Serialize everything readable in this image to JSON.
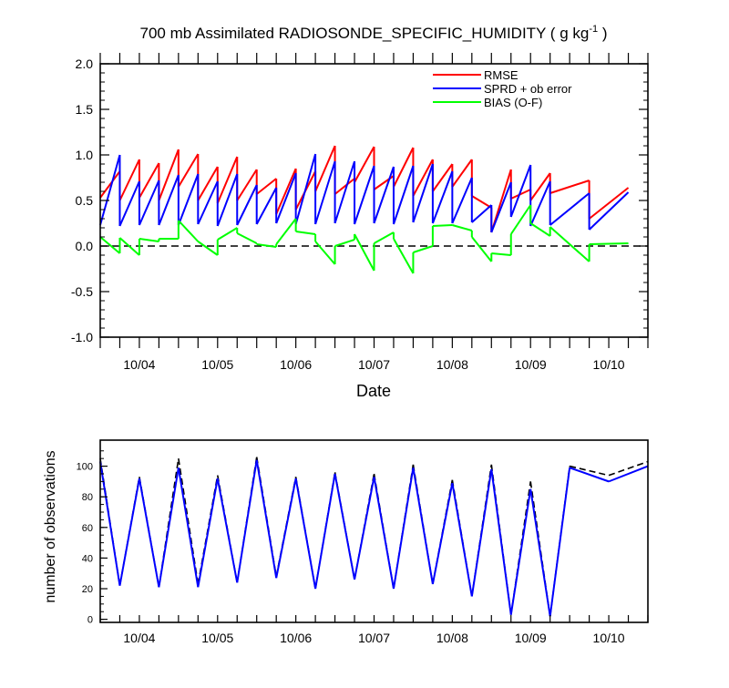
{
  "chart_data": [
    {
      "type": "line",
      "title": "700 mb Assimilated RADIOSONDE_SPECIFIC_HUMIDITY ( g kg",
      "title_superscript": "-1",
      "title_suffix": " )",
      "xlabel": "Date",
      "ylabel": "",
      "x_ticks": [
        "10/04",
        "10/05",
        "10/06",
        "10/07",
        "10/08",
        "10/09",
        "10/10"
      ],
      "x_ticks_at": [
        4,
        5,
        6,
        7,
        8,
        9,
        10
      ],
      "xlim": [
        3.5,
        10.5
      ],
      "ylim": [
        -1.0,
        2.0
      ],
      "y_ticks": [
        "-1.0",
        "-0.5",
        "0.0",
        "0.5",
        "1.0",
        "1.5",
        "2.0"
      ],
      "y_ticks_at": [
        -1.0,
        -0.5,
        0.0,
        0.5,
        1.0,
        1.5,
        2.0
      ],
      "reference_line": {
        "y": 0.0,
        "style": "dashed",
        "color": "#000000"
      },
      "legend": {
        "placement": "top-right"
      },
      "series": [
        {
          "name": "RMSE",
          "color": "#ff0000",
          "segments": [
            [
              [
                3.5,
                0.53
              ],
              [
                3.75,
                0.82
              ]
            ],
            [
              [
                3.75,
                0.5
              ],
              [
                4.0,
                0.95
              ]
            ],
            [
              [
                4.0,
                0.53
              ],
              [
                4.25,
                0.91
              ]
            ],
            [
              [
                4.25,
                0.5
              ],
              [
                4.5,
                1.06
              ]
            ],
            [
              [
                4.5,
                0.65
              ],
              [
                4.75,
                1.01
              ]
            ],
            [
              [
                4.75,
                0.5
              ],
              [
                5.0,
                0.87
              ]
            ],
            [
              [
                5.0,
                0.47
              ],
              [
                5.25,
                0.98
              ]
            ],
            [
              [
                5.25,
                0.5
              ],
              [
                5.5,
                0.84
              ]
            ],
            [
              [
                5.5,
                0.57
              ],
              [
                5.75,
                0.74
              ]
            ],
            [
              [
                5.75,
                0.35
              ],
              [
                6.0,
                0.85
              ]
            ],
            [
              [
                6.0,
                0.4
              ],
              [
                6.25,
                0.82
              ]
            ],
            [
              [
                6.25,
                0.6
              ],
              [
                6.5,
                1.1
              ]
            ],
            [
              [
                6.5,
                0.57
              ],
              [
                6.75,
                0.74
              ]
            ],
            [
              [
                6.75,
                0.7
              ],
              [
                7.0,
                1.09
              ]
            ],
            [
              [
                7.0,
                0.62
              ],
              [
                7.25,
                0.77
              ]
            ],
            [
              [
                7.25,
                0.65
              ],
              [
                7.5,
                1.08
              ]
            ],
            [
              [
                7.5,
                0.55
              ],
              [
                7.75,
                0.95
              ]
            ],
            [
              [
                7.75,
                0.6
              ],
              [
                8.0,
                0.9
              ]
            ],
            [
              [
                8.0,
                0.65
              ],
              [
                8.25,
                0.95
              ]
            ],
            [
              [
                8.25,
                0.55
              ],
              [
                8.5,
                0.42
              ]
            ],
            [
              [
                8.5,
                0.15
              ],
              [
                8.75,
                0.84
              ]
            ],
            [
              [
                8.75,
                0.52
              ],
              [
                9.0,
                0.62
              ]
            ],
            [
              [
                9.0,
                0.5
              ],
              [
                9.25,
                0.8
              ]
            ],
            [
              [
                9.25,
                0.58
              ],
              [
                9.75,
                0.72
              ]
            ],
            [
              [
                9.75,
                0.3
              ],
              [
                10.25,
                0.64
              ]
            ]
          ]
        },
        {
          "name": "SPRD + ob error",
          "color": "#0000ff",
          "segments": [
            [
              [
                3.5,
                0.23
              ],
              [
                3.75,
                1.0
              ]
            ],
            [
              [
                3.75,
                0.22
              ],
              [
                4.0,
                0.71
              ]
            ],
            [
              [
                4.0,
                0.23
              ],
              [
                4.25,
                0.72
              ]
            ],
            [
              [
                4.25,
                0.23
              ],
              [
                4.5,
                0.78
              ]
            ],
            [
              [
                4.5,
                0.23
              ],
              [
                4.75,
                0.79
              ]
            ],
            [
              [
                4.75,
                0.24
              ],
              [
                5.0,
                0.71
              ]
            ],
            [
              [
                5.0,
                0.22
              ],
              [
                5.25,
                0.79
              ]
            ],
            [
              [
                5.25,
                0.23
              ],
              [
                5.5,
                0.67
              ]
            ],
            [
              [
                5.5,
                0.24
              ],
              [
                5.75,
                0.64
              ]
            ],
            [
              [
                5.75,
                0.25
              ],
              [
                6.0,
                0.8
              ]
            ],
            [
              [
                6.0,
                0.24
              ],
              [
                6.25,
                1.01
              ]
            ],
            [
              [
                6.25,
                0.24
              ],
              [
                6.5,
                0.93
              ]
            ],
            [
              [
                6.5,
                0.25
              ],
              [
                6.75,
                0.93
              ]
            ],
            [
              [
                6.75,
                0.24
              ],
              [
                7.0,
                0.88
              ]
            ],
            [
              [
                7.0,
                0.25
              ],
              [
                7.25,
                0.87
              ]
            ],
            [
              [
                7.25,
                0.24
              ],
              [
                7.5,
                0.88
              ]
            ],
            [
              [
                7.5,
                0.26
              ],
              [
                7.75,
                0.9
              ]
            ],
            [
              [
                7.75,
                0.25
              ],
              [
                8.0,
                0.82
              ]
            ],
            [
              [
                8.0,
                0.25
              ],
              [
                8.25,
                0.75
              ]
            ],
            [
              [
                8.25,
                0.26
              ],
              [
                8.5,
                0.45
              ]
            ],
            [
              [
                8.5,
                0.15
              ],
              [
                8.75,
                0.7
              ]
            ],
            [
              [
                8.75,
                0.32
              ],
              [
                9.0,
                0.89
              ]
            ],
            [
              [
                9.0,
                0.22
              ],
              [
                9.25,
                0.71
              ]
            ],
            [
              [
                9.25,
                0.23
              ],
              [
                9.75,
                0.58
              ]
            ],
            [
              [
                9.75,
                0.18
              ],
              [
                10.25,
                0.59
              ]
            ]
          ]
        },
        {
          "name": "BIAS (O-F)",
          "color": "#00ff00",
          "segments": [
            [
              [
                3.5,
                0.1
              ],
              [
                3.75,
                -0.08
              ]
            ],
            [
              [
                3.75,
                0.09
              ],
              [
                4.0,
                -0.1
              ]
            ],
            [
              [
                4.0,
                0.08
              ],
              [
                4.25,
                0.05
              ]
            ],
            [
              [
                4.25,
                0.08
              ],
              [
                4.5,
                0.08
              ]
            ],
            [
              [
                4.5,
                0.28
              ],
              [
                4.75,
                0.05
              ]
            ],
            [
              [
                4.75,
                0.05
              ],
              [
                5.0,
                -0.1
              ]
            ],
            [
              [
                5.0,
                0.07
              ],
              [
                5.25,
                0.2
              ]
            ],
            [
              [
                5.25,
                0.14
              ],
              [
                5.5,
                0.03
              ]
            ],
            [
              [
                5.5,
                0.02
              ],
              [
                5.75,
                -0.01
              ]
            ],
            [
              [
                5.75,
                0.02
              ],
              [
                6.0,
                0.3
              ]
            ],
            [
              [
                6.0,
                0.16
              ],
              [
                6.25,
                0.13
              ]
            ],
            [
              [
                6.25,
                0.05
              ],
              [
                6.5,
                -0.2
              ]
            ],
            [
              [
                6.5,
                0.0
              ],
              [
                6.75,
                0.07
              ]
            ],
            [
              [
                6.75,
                0.13
              ],
              [
                7.0,
                -0.27
              ]
            ],
            [
              [
                7.0,
                0.03
              ],
              [
                7.25,
                0.15
              ]
            ],
            [
              [
                7.25,
                0.08
              ],
              [
                7.5,
                -0.3
              ]
            ],
            [
              [
                7.5,
                -0.07
              ],
              [
                7.75,
                0.0
              ]
            ],
            [
              [
                7.75,
                0.22
              ],
              [
                8.0,
                0.23
              ]
            ],
            [
              [
                8.0,
                0.23
              ],
              [
                8.25,
                0.17
              ]
            ],
            [
              [
                8.25,
                0.1
              ],
              [
                8.5,
                -0.17
              ]
            ],
            [
              [
                8.5,
                -0.08
              ],
              [
                8.75,
                -0.1
              ]
            ],
            [
              [
                8.75,
                0.13
              ],
              [
                9.0,
                0.45
              ]
            ],
            [
              [
                9.0,
                0.25
              ],
              [
                9.25,
                0.11
              ]
            ],
            [
              [
                9.25,
                0.21
              ],
              [
                9.75,
                -0.17
              ]
            ],
            [
              [
                9.75,
                0.02
              ],
              [
                10.25,
                0.03
              ]
            ]
          ]
        }
      ]
    },
    {
      "type": "line",
      "title": "",
      "xlabel": "",
      "ylabel": "number of observations",
      "x_ticks": [
        "10/04",
        "10/05",
        "10/06",
        "10/07",
        "10/08",
        "10/09",
        "10/10"
      ],
      "x_ticks_at": [
        4,
        5,
        6,
        7,
        8,
        9,
        10
      ],
      "xlim": [
        3.5,
        10.5
      ],
      "ylim": [
        -2,
        117
      ],
      "y_ticks": [
        "0",
        "20",
        "40",
        "60",
        "80",
        "100"
      ],
      "y_ticks_at": [
        0,
        20,
        40,
        60,
        80,
        100
      ],
      "series": [
        {
          "name": "",
          "color": "#000000",
          "dashed": true,
          "points": [
            [
              3.5,
              105
            ],
            [
              3.75,
              22
            ],
            [
              4.0,
              93
            ],
            [
              4.25,
              21
            ],
            [
              4.5,
              105
            ],
            [
              4.75,
              23
            ],
            [
              5.0,
              94
            ],
            [
              5.25,
              24
            ],
            [
              5.5,
              106
            ],
            [
              5.75,
              28
            ],
            [
              6.0,
              93
            ],
            [
              6.25,
              20
            ],
            [
              6.5,
              96
            ],
            [
              6.75,
              26
            ],
            [
              7.0,
              95
            ],
            [
              7.25,
              20
            ],
            [
              7.5,
              101
            ],
            [
              7.75,
              23
            ],
            [
              8.0,
              91
            ],
            [
              8.25,
              15
            ],
            [
              8.5,
              101
            ],
            [
              8.75,
              3
            ],
            [
              9.0,
              90
            ],
            [
              9.25,
              2
            ],
            [
              9.5,
              100
            ],
            [
              10.0,
              94
            ],
            [
              10.5,
              103
            ]
          ]
        },
        {
          "name": "",
          "color": "#0000ff",
          "dashed": false,
          "points": [
            [
              3.5,
              103
            ],
            [
              3.75,
              22
            ],
            [
              4.0,
              92
            ],
            [
              4.25,
              21
            ],
            [
              4.5,
              99
            ],
            [
              4.75,
              21
            ],
            [
              5.0,
              92
            ],
            [
              5.25,
              24
            ],
            [
              5.5,
              104
            ],
            [
              5.75,
              27
            ],
            [
              6.0,
              92
            ],
            [
              6.25,
              20
            ],
            [
              6.5,
              95
            ],
            [
              6.75,
              26
            ],
            [
              7.0,
              93
            ],
            [
              7.25,
              20
            ],
            [
              7.5,
              99
            ],
            [
              7.75,
              23
            ],
            [
              8.0,
              89
            ],
            [
              8.25,
              15
            ],
            [
              8.5,
              98
            ],
            [
              8.75,
              3
            ],
            [
              9.0,
              85
            ],
            [
              9.25,
              2
            ],
            [
              9.5,
              99
            ],
            [
              10.0,
              90
            ],
            [
              10.5,
              100
            ]
          ]
        }
      ]
    }
  ]
}
